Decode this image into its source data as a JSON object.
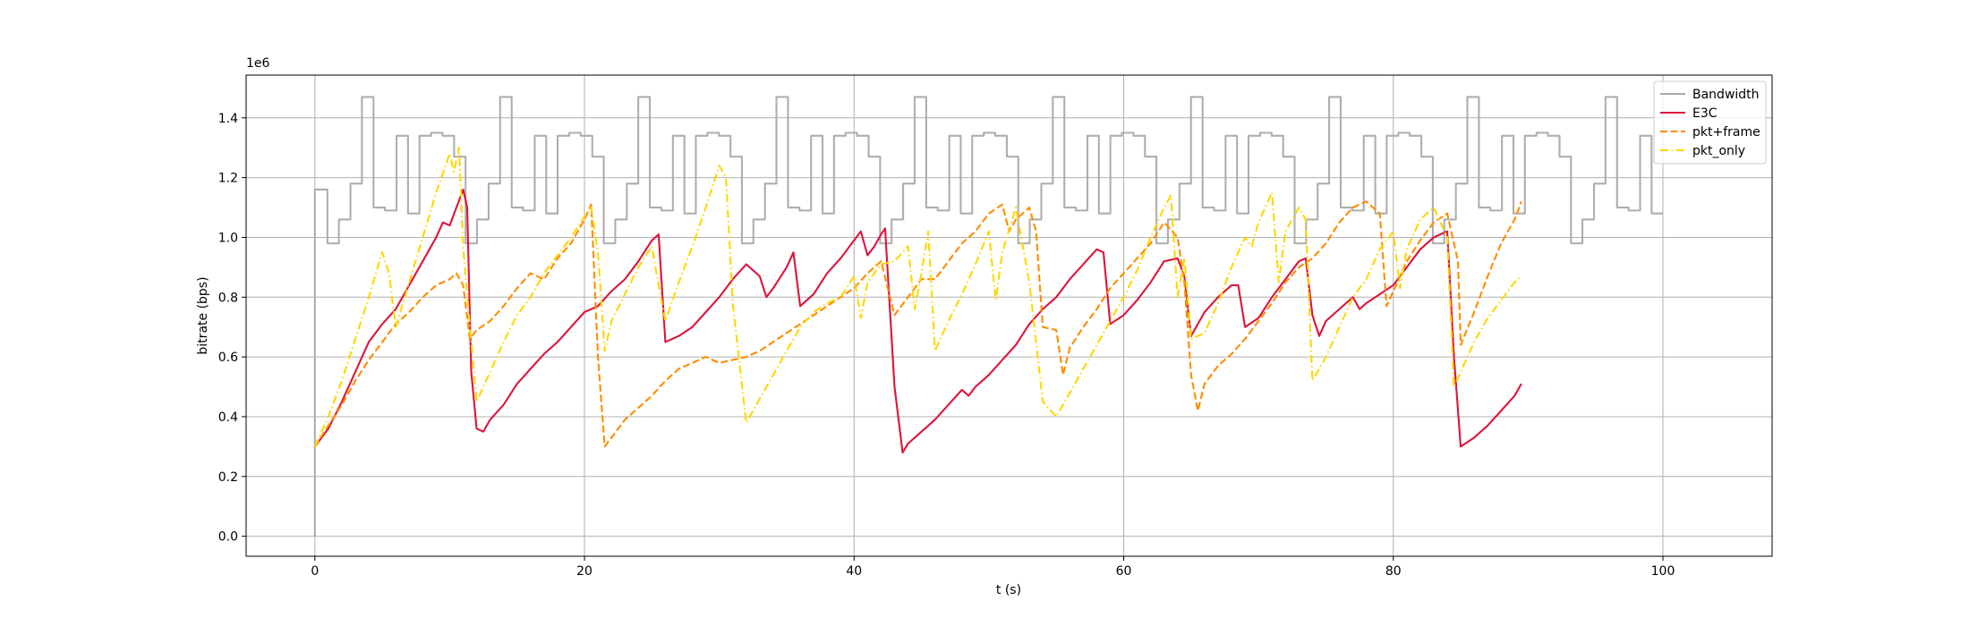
{
  "chart_data": {
    "type": "line",
    "y_offset_label": "1e6",
    "xlabel": "t (s)",
    "ylabel": "bitrate (bps)",
    "xlim": [
      -5.1,
      108.1
    ],
    "ylim": [
      -0.067,
      1.543
    ],
    "xticks": [
      0,
      20,
      40,
      60,
      80,
      100
    ],
    "yticks": [
      {
        "value": 0,
        "label": "0.0"
      },
      0.2,
      0.4,
      0.6,
      0.8,
      {
        "value": 1,
        "label": "1.0"
      },
      1.2,
      1.4
    ],
    "grid": true,
    "legend": "upper right",
    "series": [
      {
        "name": "Bandwidth",
        "color": "#aaaaaa",
        "linestyle": "solid",
        "drawstyle": "steps-post",
        "x": [
          0,
          0,
          0.93,
          1.78,
          2.64,
          3.49,
          4.35,
          5.2,
          6.06,
          6.91,
          7.76,
          8.62,
          9.47,
          10.33,
          11.18,
          12.03,
          12.89,
          13.74,
          14.6,
          15.45,
          16.31,
          17.16,
          18.01,
          18.87,
          19.72,
          20.58,
          21.43,
          22.28,
          23.14,
          23.99,
          24.85,
          25.7,
          26.56,
          27.41,
          28.26,
          29.12,
          29.97,
          30.83,
          31.68,
          32.53,
          33.39,
          34.24,
          35.1,
          35.95,
          36.81,
          37.66,
          38.51,
          39.37,
          40.22,
          41.08,
          41.93,
          42.78,
          43.64,
          44.49,
          45.35,
          46.2,
          47.06,
          47.91,
          48.76,
          49.62,
          50.47,
          51.33,
          52.18,
          53.03,
          53.89,
          54.74,
          55.6,
          56.45,
          57.31,
          58.16,
          59.01,
          59.87,
          60.72,
          61.58,
          62.43,
          63.28,
          64.14,
          64.99,
          65.85,
          66.7,
          67.56,
          68.41,
          69.26,
          70.12,
          70.97,
          71.83,
          72.68,
          73.53,
          74.39,
          75.24,
          76.1,
          76.95,
          77.81,
          78.66,
          79.51,
          80.37,
          81.22,
          82.08,
          82.93,
          83.78,
          84.64,
          85.49,
          86.35,
          87.2,
          88.06,
          88.91,
          89.76,
          90.62,
          91.47,
          92.33,
          93.18,
          94.03,
          94.89,
          95.74,
          96.6,
          97.45,
          98.31,
          99.16,
          100
        ],
        "values": [
          0,
          1.16,
          0.98,
          1.06,
          1.18,
          1.47,
          1.1,
          1.09,
          1.34,
          1.08,
          1.34,
          1.35,
          1.34,
          1.27,
          0.98,
          1.06,
          1.18,
          1.47,
          1.1,
          1.09,
          1.34,
          1.08,
          1.34,
          1.35,
          1.34,
          1.27,
          0.98,
          1.06,
          1.18,
          1.47,
          1.1,
          1.09,
          1.34,
          1.08,
          1.34,
          1.35,
          1.34,
          1.27,
          0.98,
          1.06,
          1.18,
          1.47,
          1.1,
          1.09,
          1.34,
          1.08,
          1.34,
          1.35,
          1.34,
          1.27,
          0.98,
          1.06,
          1.18,
          1.47,
          1.1,
          1.09,
          1.34,
          1.08,
          1.34,
          1.35,
          1.34,
          1.27,
          0.98,
          1.06,
          1.18,
          1.47,
          1.1,
          1.09,
          1.34,
          1.08,
          1.34,
          1.35,
          1.34,
          1.27,
          0.98,
          1.06,
          1.18,
          1.47,
          1.1,
          1.09,
          1.34,
          1.08,
          1.34,
          1.35,
          1.34,
          1.27,
          0.98,
          1.06,
          1.18,
          1.47,
          1.1,
          1.09,
          1.34,
          1.08,
          1.34,
          1.35,
          1.34,
          1.27,
          0.98,
          1.06,
          1.18,
          1.47,
          1.1,
          1.09,
          1.34,
          1.08,
          1.34,
          1.35,
          1.34,
          1.27,
          0.98,
          1.06,
          1.18,
          1.47,
          1.1,
          1.09,
          1.34,
          1.08,
          1.08
        ]
      },
      {
        "name": "E3C",
        "color": "#dc143c",
        "linestyle": "solid",
        "x": [
          0,
          1,
          2,
          3,
          4,
          5,
          6,
          7,
          8,
          9,
          9.5,
          10,
          10.5,
          11,
          11.3,
          11.6,
          12,
          12.5,
          13,
          14,
          15,
          16,
          17,
          18,
          19,
          20,
          21,
          22,
          23,
          24,
          25,
          25.5,
          26,
          27,
          28,
          29,
          30,
          31,
          32,
          33,
          33.5,
          34,
          35,
          35.5,
          36,
          37,
          38,
          39,
          40,
          40.5,
          41,
          41.5,
          42,
          42.3,
          43,
          43.6,
          44,
          45,
          46,
          47,
          48,
          48.5,
          49,
          50,
          51,
          52,
          53,
          54,
          55,
          56,
          57,
          58,
          58.5,
          59,
          60,
          61,
          62,
          63,
          64,
          64.5,
          65,
          66,
          67,
          68,
          68.5,
          69,
          70,
          71,
          72,
          73,
          73.5,
          74,
          74.5,
          75,
          76,
          77,
          77.5,
          78,
          79,
          80,
          81,
          82,
          83,
          84,
          84.5,
          85,
          86,
          87,
          88,
          89,
          89.5
        ],
        "values": [
          0.3,
          0.36,
          0.45,
          0.55,
          0.65,
          0.71,
          0.76,
          0.84,
          0.92,
          1.0,
          1.05,
          1.04,
          1.1,
          1.16,
          1.1,
          0.55,
          0.36,
          0.35,
          0.39,
          0.44,
          0.51,
          0.56,
          0.61,
          0.65,
          0.7,
          0.75,
          0.77,
          0.82,
          0.86,
          0.92,
          0.99,
          1.01,
          0.65,
          0.67,
          0.7,
          0.75,
          0.8,
          0.86,
          0.91,
          0.87,
          0.8,
          0.83,
          0.9,
          0.95,
          0.77,
          0.81,
          0.88,
          0.93,
          0.99,
          1.02,
          0.94,
          0.97,
          1.01,
          1.03,
          0.5,
          0.28,
          0.31,
          0.35,
          0.39,
          0.44,
          0.49,
          0.47,
          0.5,
          0.54,
          0.59,
          0.64,
          0.71,
          0.76,
          0.8,
          0.86,
          0.91,
          0.96,
          0.95,
          0.71,
          0.74,
          0.79,
          0.85,
          0.92,
          0.93,
          0.87,
          0.67,
          0.75,
          0.8,
          0.84,
          0.84,
          0.7,
          0.73,
          0.8,
          0.86,
          0.92,
          0.93,
          0.74,
          0.67,
          0.72,
          0.76,
          0.8,
          0.76,
          0.78,
          0.81,
          0.84,
          0.9,
          0.96,
          1.0,
          1.02,
          0.6,
          0.3,
          0.33,
          0.37,
          0.42,
          0.47,
          0.51
        ]
      },
      {
        "name": "pkt+frame",
        "color": "#ff8c00",
        "linestyle": "dashed",
        "x": [
          0,
          1,
          2,
          3,
          4,
          5,
          6,
          7,
          8,
          9,
          10,
          10.5,
          11,
          11.5,
          12,
          13,
          14,
          15,
          16,
          17,
          18,
          19,
          20,
          20.5,
          21,
          21.5,
          22,
          23,
          24,
          25,
          26,
          27,
          28,
          29,
          30,
          31,
          32,
          33,
          34,
          35,
          36,
          37,
          38,
          39,
          40,
          41,
          42,
          43,
          44,
          45,
          46,
          47,
          48,
          49,
          50,
          51,
          51.5,
          52,
          53,
          53.5,
          54,
          55,
          55.5,
          56,
          57,
          58,
          59,
          60,
          61,
          62,
          63,
          64,
          64.5,
          65,
          65.5,
          66,
          67,
          68,
          69,
          70,
          71,
          72,
          73,
          74,
          75,
          76,
          77,
          78,
          79,
          79.5,
          80,
          81,
          82,
          83,
          84,
          84.8,
          85,
          86,
          87,
          88,
          89,
          89.5
        ],
        "values": [
          0.3,
          0.37,
          0.44,
          0.52,
          0.59,
          0.65,
          0.71,
          0.75,
          0.8,
          0.84,
          0.86,
          0.88,
          0.84,
          0.66,
          0.69,
          0.72,
          0.77,
          0.83,
          0.88,
          0.86,
          0.93,
          0.98,
          1.06,
          1.11,
          0.6,
          0.3,
          0.33,
          0.39,
          0.43,
          0.47,
          0.52,
          0.56,
          0.58,
          0.6,
          0.58,
          0.59,
          0.6,
          0.62,
          0.65,
          0.68,
          0.71,
          0.74,
          0.77,
          0.8,
          0.83,
          0.88,
          0.92,
          0.74,
          0.8,
          0.86,
          0.86,
          0.92,
          0.98,
          1.02,
          1.08,
          1.11,
          1.02,
          1.06,
          1.1,
          1.02,
          0.7,
          0.69,
          0.54,
          0.63,
          0.7,
          0.76,
          0.83,
          0.88,
          0.93,
          0.98,
          1.05,
          1.0,
          0.85,
          0.54,
          0.42,
          0.51,
          0.57,
          0.61,
          0.66,
          0.72,
          0.78,
          0.85,
          0.9,
          0.93,
          0.98,
          1.05,
          1.1,
          1.12,
          1.08,
          0.77,
          0.82,
          0.92,
          0.99,
          1.05,
          1.08,
          0.92,
          0.64,
          0.75,
          0.87,
          0.98,
          1.06,
          1.12
        ]
      },
      {
        "name": "pkt_only",
        "color": "#ffd700",
        "linestyle": "dashdot",
        "x": [
          0,
          1,
          2,
          3,
          4,
          5,
          5.5,
          6,
          7,
          8,
          9,
          10,
          10.3,
          10.7,
          11,
          11.5,
          12,
          13,
          14,
          15,
          16,
          17,
          18,
          19,
          20,
          20.5,
          21,
          21.5,
          22,
          23,
          24,
          25,
          25.5,
          26,
          27,
          28,
          29,
          30,
          30.5,
          31,
          32,
          33,
          34,
          35,
          36,
          37,
          38,
          39,
          40,
          40.5,
          41,
          42,
          43,
          44,
          44.5,
          45,
          45.5,
          46,
          47,
          48,
          49,
          50,
          50.5,
          51,
          52,
          53,
          54,
          55,
          56,
          57,
          58,
          59,
          60,
          61,
          62,
          63,
          63.5,
          64,
          64.5,
          65,
          66,
          67,
          68,
          69,
          69.5,
          70,
          71,
          71.5,
          72,
          73,
          73.5,
          74,
          75,
          76,
          77,
          78,
          79,
          80,
          80.5,
          81,
          82,
          83,
          84,
          84.5,
          85,
          86,
          87,
          88,
          89,
          89.5
        ],
        "values": [
          0.3,
          0.4,
          0.52,
          0.66,
          0.8,
          0.95,
          0.88,
          0.7,
          0.85,
          1.0,
          1.15,
          1.28,
          1.22,
          1.3,
          0.97,
          0.7,
          0.45,
          0.55,
          0.65,
          0.74,
          0.8,
          0.88,
          0.94,
          1.0,
          1.07,
          1.1,
          0.95,
          0.62,
          0.72,
          0.81,
          0.9,
          0.97,
          0.84,
          0.72,
          0.85,
          0.97,
          1.1,
          1.24,
          1.2,
          0.78,
          0.38,
          0.46,
          0.54,
          0.62,
          0.7,
          0.75,
          0.78,
          0.8,
          0.87,
          0.73,
          0.85,
          0.91,
          0.92,
          0.97,
          0.76,
          0.88,
          1.02,
          0.62,
          0.72,
          0.81,
          0.91,
          1.02,
          0.79,
          0.95,
          1.1,
          0.85,
          0.45,
          0.4,
          0.48,
          0.56,
          0.64,
          0.72,
          0.8,
          0.89,
          1.0,
          1.1,
          1.14,
          0.8,
          0.93,
          0.66,
          0.68,
          0.78,
          0.9,
          1.0,
          0.97,
          1.05,
          1.15,
          0.85,
          1.02,
          1.1,
          1.06,
          0.52,
          0.6,
          0.7,
          0.8,
          0.86,
          0.96,
          1.02,
          0.83,
          0.96,
          1.06,
          1.1,
          1.0,
          0.5,
          0.55,
          0.65,
          0.73,
          0.79,
          0.85,
          0.87
        ]
      }
    ]
  }
}
